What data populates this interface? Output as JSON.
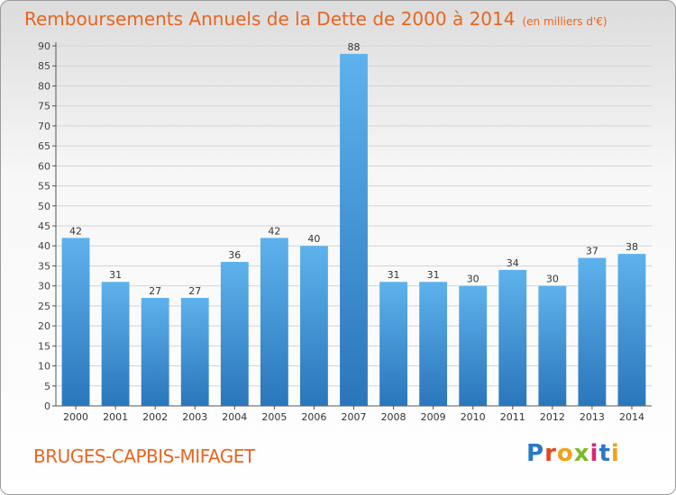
{
  "header": {
    "title": "Remboursements Annuels de la Dette de 2000 à 2014",
    "unit": "(en milliers d'€)"
  },
  "footer": {
    "commune": "BRUGES-CAPBIS-MIFAGET",
    "logo_text": "Proxiti"
  },
  "colors": {
    "bar_light": "#5aaee8",
    "bar_dark": "#2a78c0",
    "accent": "#e8651f",
    "grid": "#d4d4d4"
  },
  "chart_data": {
    "type": "bar",
    "title": "Remboursements Annuels de la Dette de 2000 à 2014",
    "categories": [
      "2000",
      "2001",
      "2002",
      "2003",
      "2004",
      "2005",
      "2006",
      "2007",
      "2008",
      "2009",
      "2010",
      "2011",
      "2012",
      "2013",
      "2014"
    ],
    "values": [
      42,
      31,
      27,
      27,
      36,
      42,
      40,
      88,
      31,
      31,
      30,
      34,
      30,
      37,
      38
    ],
    "ylim": [
      0,
      90
    ],
    "yticks": [
      0,
      5,
      10,
      15,
      20,
      25,
      30,
      35,
      40,
      45,
      50,
      55,
      60,
      65,
      70,
      75,
      80,
      85,
      90
    ],
    "grid": true,
    "xlabel": "",
    "ylabel": ""
  }
}
